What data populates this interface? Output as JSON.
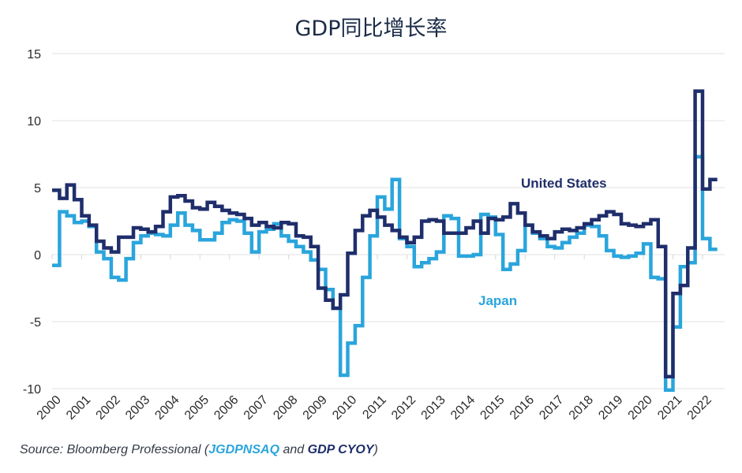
{
  "chart_data": {
    "type": "line",
    "step": true,
    "title": "GDP同比增长率",
    "xlabel": "",
    "ylabel": "",
    "xlim": [
      2000.0,
      2022.6
    ],
    "ylim": [
      -10,
      15
    ],
    "yticks": [
      15,
      10,
      5,
      0,
      -5,
      -10
    ],
    "xticks": [
      "2000",
      "2001",
      "2002",
      "2003",
      "2004",
      "2005",
      "2006",
      "2007",
      "2008",
      "2009",
      "2010",
      "2011",
      "2012",
      "2013",
      "2014",
      "2015",
      "2016",
      "2017",
      "2018",
      "2019",
      "2020",
      "2021",
      "2022"
    ],
    "grid": true,
    "legend": "inline-labels",
    "series": [
      {
        "name": "Japan",
        "label": "Japan",
        "color": "#2aa5dc",
        "x": [
          2000.0,
          2000.25,
          2000.5,
          2000.75,
          2001.0,
          2001.25,
          2001.5,
          2001.75,
          2002.0,
          2002.25,
          2002.5,
          2002.75,
          2003.0,
          2003.25,
          2003.5,
          2003.75,
          2004.0,
          2004.25,
          2004.5,
          2004.75,
          2005.0,
          2005.25,
          2005.5,
          2005.75,
          2006.0,
          2006.25,
          2006.5,
          2006.75,
          2007.0,
          2007.25,
          2007.5,
          2007.75,
          2008.0,
          2008.25,
          2008.5,
          2008.75,
          2009.0,
          2009.25,
          2009.5,
          2009.75,
          2010.0,
          2010.25,
          2010.5,
          2010.75,
          2011.0,
          2011.25,
          2011.5,
          2011.75,
          2012.0,
          2012.25,
          2012.5,
          2012.75,
          2013.0,
          2013.25,
          2013.5,
          2013.75,
          2014.0,
          2014.25,
          2014.5,
          2014.75,
          2015.0,
          2015.25,
          2015.5,
          2015.75,
          2016.0,
          2016.25,
          2016.5,
          2016.75,
          2017.0,
          2017.25,
          2017.5,
          2017.75,
          2018.0,
          2018.25,
          2018.5,
          2018.75,
          2019.0,
          2019.25,
          2019.5,
          2019.75,
          2020.0,
          2020.25,
          2020.5,
          2020.75,
          2021.0,
          2021.25,
          2021.5,
          2021.75,
          2022.0,
          2022.25
        ],
        "y": [
          -0.8,
          3.2,
          2.9,
          2.4,
          2.5,
          2.1,
          0.2,
          -0.3,
          -1.7,
          -1.9,
          -0.3,
          0.9,
          1.4,
          1.6,
          1.5,
          1.4,
          2.2,
          3.1,
          2.2,
          1.8,
          1.1,
          1.1,
          1.6,
          2.4,
          2.6,
          2.5,
          1.6,
          0.2,
          1.7,
          1.9,
          2.3,
          1.4,
          1.0,
          0.6,
          0.2,
          -0.4,
          -1.1,
          -2.6,
          -4.0,
          -9.0,
          -6.6,
          -5.3,
          -1.7,
          1.4,
          4.3,
          3.4,
          5.6,
          1.2,
          0.6,
          -0.9,
          -0.6,
          -0.3,
          0.2,
          2.9,
          2.7,
          -0.1,
          -0.1,
          0.0,
          3.0,
          2.8,
          1.5,
          -1.1,
          -0.7,
          0.3,
          2.2,
          1.6,
          1.2,
          0.6,
          0.5,
          0.9,
          1.3,
          1.6,
          2.2,
          2.1,
          1.4,
          0.3,
          -0.1,
          -0.2,
          -0.1,
          0.1,
          0.8,
          -1.7,
          -1.8,
          -10.1,
          -5.4,
          -0.9,
          -0.6,
          7.3,
          1.2,
          0.4
        ]
      },
      {
        "name": "United States",
        "label": "United States",
        "color": "#1f2e6b",
        "x": [
          2000.0,
          2000.25,
          2000.5,
          2000.75,
          2001.0,
          2001.25,
          2001.5,
          2001.75,
          2002.0,
          2002.25,
          2002.5,
          2002.75,
          2003.0,
          2003.25,
          2003.5,
          2003.75,
          2004.0,
          2004.25,
          2004.5,
          2004.75,
          2005.0,
          2005.25,
          2005.5,
          2005.75,
          2006.0,
          2006.25,
          2006.5,
          2006.75,
          2007.0,
          2007.25,
          2007.5,
          2007.75,
          2008.0,
          2008.25,
          2008.5,
          2008.75,
          2009.0,
          2009.25,
          2009.5,
          2009.75,
          2010.0,
          2010.25,
          2010.5,
          2010.75,
          2011.0,
          2011.25,
          2011.5,
          2011.75,
          2012.0,
          2012.25,
          2012.5,
          2012.75,
          2013.0,
          2013.25,
          2013.5,
          2013.75,
          2014.0,
          2014.25,
          2014.5,
          2014.75,
          2015.0,
          2015.25,
          2015.5,
          2015.75,
          2016.0,
          2016.25,
          2016.5,
          2016.75,
          2017.0,
          2017.25,
          2017.5,
          2017.75,
          2018.0,
          2018.25,
          2018.5,
          2018.75,
          2019.0,
          2019.25,
          2019.5,
          2019.75,
          2020.0,
          2020.25,
          2020.5,
          2020.75,
          2021.0,
          2021.25,
          2021.5,
          2021.75,
          2022.0,
          2022.25
        ],
        "y": [
          4.8,
          4.2,
          5.2,
          4.1,
          2.9,
          2.2,
          1.0,
          0.5,
          0.2,
          1.3,
          1.3,
          2.0,
          1.9,
          1.7,
          2.1,
          3.2,
          4.3,
          4.4,
          4.0,
          3.5,
          3.4,
          3.9,
          3.6,
          3.3,
          3.1,
          3.0,
          2.7,
          2.2,
          2.4,
          2.1,
          2.0,
          2.4,
          2.3,
          1.4,
          1.3,
          0.6,
          -2.5,
          -3.4,
          -4.0,
          -3.0,
          0.1,
          1.8,
          2.9,
          3.3,
          2.8,
          2.2,
          1.8,
          1.3,
          0.9,
          1.3,
          2.5,
          2.6,
          2.5,
          1.6,
          1.6,
          1.6,
          2.0,
          2.5,
          1.6,
          2.7,
          2.6,
          2.8,
          3.8,
          3.1,
          2.2,
          1.7,
          1.4,
          1.2,
          1.7,
          1.9,
          1.8,
          2.0,
          2.3,
          2.6,
          2.9,
          3.2,
          3.0,
          2.3,
          2.2,
          2.1,
          2.3,
          2.6,
          0.6,
          -9.1,
          -2.9,
          -2.3,
          0.5,
          12.2,
          4.9,
          5.6
        ]
      }
    ]
  },
  "source": {
    "prefix": "Source: Bloomberg Professional (",
    "japan_ticker": "JGDPNSAQ",
    "conjunction": " and ",
    "us_ticker": "GDP CYOY",
    "suffix": ")"
  }
}
